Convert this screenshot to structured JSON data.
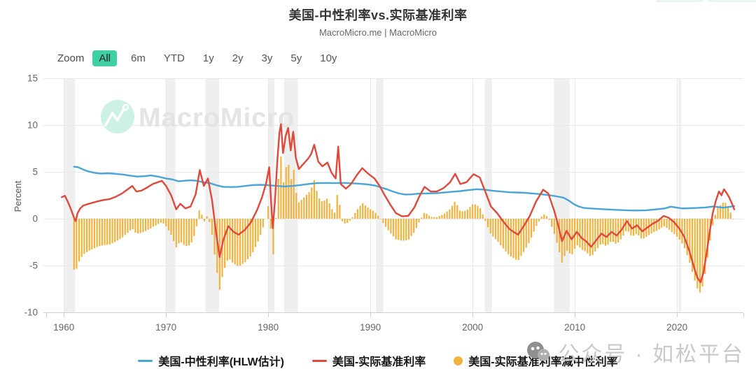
{
  "header": {
    "title": "美国-中性利率vs.实际基准利率",
    "source": "MacroMicro.me | MacroMicro"
  },
  "toolbar": {
    "zoom_label": "Zoom",
    "ranges": [
      "All",
      "6m",
      "YTD",
      "1y",
      "2y",
      "3y",
      "5y",
      "10y"
    ],
    "active_range": "All",
    "active_color": "#3ed0a5"
  },
  "watermark": {
    "brand": "MacroMicro",
    "overlay_text": "公众号 · 如松平台"
  },
  "legend": [
    {
      "label": "美国-中性利率(HLW估计)",
      "marker": "line",
      "color": "#47a5d8"
    },
    {
      "label": "美国-实际基准利率",
      "marker": "line",
      "color": "#e2483a"
    },
    {
      "label": "美国-实际基准利率减中性利率",
      "marker": "circle",
      "color": "#f2b33e"
    }
  ],
  "chart_data": {
    "type": "mixed-line-bar",
    "title": "美国-中性利率vs.实际基准利率",
    "ylabel": "Percent",
    "y_ticks": [
      15,
      10,
      5,
      0,
      -5,
      -10
    ],
    "x_ticks": [
      1960,
      1970,
      1980,
      1990,
      2000,
      2010,
      2020
    ],
    "x_range": [
      1958,
      2026.5
    ],
    "y_range": [
      -10,
      15
    ],
    "grid": true,
    "colors": {
      "grid": "#e8e8e8",
      "band": "#efefef",
      "axis": "#cfcfcf",
      "tick_text": "#666666"
    },
    "recession_bands": [
      [
        1960.0,
        1961.1
      ],
      [
        1969.95,
        1970.9
      ],
      [
        1973.85,
        1975.2
      ],
      [
        1980.0,
        1980.6
      ],
      [
        1981.55,
        1982.9
      ],
      [
        1990.55,
        1991.25
      ],
      [
        2001.2,
        2001.9
      ],
      [
        2007.95,
        2009.5
      ],
      [
        2020.15,
        2020.4
      ]
    ],
    "series": [
      {
        "name": "美国-中性利率(HLW估计)",
        "type": "line",
        "color": "#47a5d8",
        "points": [
          [
            1961.0,
            5.55
          ],
          [
            1961.4,
            5.5
          ],
          [
            1961.9,
            5.25
          ],
          [
            1962.4,
            5.05
          ],
          [
            1963.0,
            4.9
          ],
          [
            1963.6,
            4.82
          ],
          [
            1964.3,
            4.85
          ],
          [
            1965.0,
            4.8
          ],
          [
            1965.8,
            4.72
          ],
          [
            1966.5,
            4.6
          ],
          [
            1967.2,
            4.5
          ],
          [
            1968.0,
            4.55
          ],
          [
            1968.5,
            4.62
          ],
          [
            1969.2,
            4.5
          ],
          [
            1970.0,
            4.3
          ],
          [
            1970.6,
            4.2
          ],
          [
            1971.2,
            4.0
          ],
          [
            1971.8,
            4.05
          ],
          [
            1972.4,
            4.1
          ],
          [
            1973.0,
            4.05
          ],
          [
            1973.6,
            3.9
          ],
          [
            1974.3,
            3.8
          ],
          [
            1975.0,
            3.55
          ],
          [
            1975.6,
            3.4
          ],
          [
            1976.3,
            3.38
          ],
          [
            1977.0,
            3.4
          ],
          [
            1977.8,
            3.5
          ],
          [
            1978.5,
            3.6
          ],
          [
            1979.3,
            3.62
          ],
          [
            1980.0,
            3.58
          ],
          [
            1980.8,
            3.5
          ],
          [
            1981.6,
            3.45
          ],
          [
            1982.4,
            3.5
          ],
          [
            1983.2,
            3.6
          ],
          [
            1984.0,
            3.72
          ],
          [
            1984.8,
            3.8
          ],
          [
            1985.6,
            3.82
          ],
          [
            1986.4,
            3.8
          ],
          [
            1987.2,
            3.82
          ],
          [
            1988.0,
            3.8
          ],
          [
            1988.8,
            3.75
          ],
          [
            1989.6,
            3.68
          ],
          [
            1990.4,
            3.55
          ],
          [
            1991.0,
            3.35
          ],
          [
            1991.6,
            3.15
          ],
          [
            1992.2,
            2.9
          ],
          [
            1992.8,
            2.7
          ],
          [
            1993.4,
            2.58
          ],
          [
            1994.0,
            2.6
          ],
          [
            1994.8,
            2.68
          ],
          [
            1995.6,
            2.7
          ],
          [
            1996.4,
            2.72
          ],
          [
            1997.2,
            2.8
          ],
          [
            1998.0,
            2.88
          ],
          [
            1998.8,
            2.95
          ],
          [
            1999.6,
            3.05
          ],
          [
            2000.4,
            3.15
          ],
          [
            2001.2,
            3.1
          ],
          [
            2002.0,
            2.98
          ],
          [
            2002.8,
            2.9
          ],
          [
            2003.6,
            2.82
          ],
          [
            2004.4,
            2.8
          ],
          [
            2005.2,
            2.75
          ],
          [
            2006.0,
            2.68
          ],
          [
            2006.8,
            2.6
          ],
          [
            2007.6,
            2.5
          ],
          [
            2008.4,
            2.35
          ],
          [
            2008.9,
            2.25
          ],
          [
            2009.4,
            1.95
          ],
          [
            2009.9,
            1.55
          ],
          [
            2010.4,
            1.3
          ],
          [
            2010.9,
            1.15
          ],
          [
            2011.5,
            1.1
          ],
          [
            2012.2,
            1.05
          ],
          [
            2013.0,
            1.0
          ],
          [
            2014.0,
            0.95
          ],
          [
            2015.0,
            0.9
          ],
          [
            2016.0,
            0.87
          ],
          [
            2017.0,
            0.9
          ],
          [
            2018.0,
            1.0
          ],
          [
            2018.8,
            1.1
          ],
          [
            2019.4,
            1.28
          ],
          [
            2019.9,
            1.2
          ],
          [
            2020.5,
            1.1
          ],
          [
            2021.2,
            1.12
          ],
          [
            2022.0,
            1.15
          ],
          [
            2022.8,
            1.2
          ],
          [
            2023.5,
            1.3
          ],
          [
            2024.0,
            1.25
          ],
          [
            2024.5,
            1.18
          ],
          [
            2025.0,
            1.25
          ],
          [
            2025.6,
            1.35
          ]
        ]
      },
      {
        "name": "美国-实际基准利率",
        "type": "line",
        "color": "#e2483a",
        "points": [
          [
            1959.8,
            2.3
          ],
          [
            1960.1,
            2.45
          ],
          [
            1960.4,
            1.8
          ],
          [
            1960.7,
            1.0
          ],
          [
            1961.0,
            0.1
          ],
          [
            1961.15,
            -0.25
          ],
          [
            1961.35,
            0.6
          ],
          [
            1961.6,
            1.1
          ],
          [
            1961.9,
            1.4
          ],
          [
            1962.3,
            1.55
          ],
          [
            1962.8,
            1.7
          ],
          [
            1963.3,
            1.85
          ],
          [
            1963.9,
            2.0
          ],
          [
            1964.5,
            2.1
          ],
          [
            1965.1,
            2.35
          ],
          [
            1965.7,
            2.7
          ],
          [
            1966.2,
            3.1
          ],
          [
            1966.7,
            3.5
          ],
          [
            1967.1,
            2.9
          ],
          [
            1967.6,
            3.0
          ],
          [
            1968.1,
            3.3
          ],
          [
            1968.7,
            3.7
          ],
          [
            1969.2,
            3.9
          ],
          [
            1969.6,
            4.05
          ],
          [
            1970.0,
            3.5
          ],
          [
            1970.5,
            2.5
          ],
          [
            1971.0,
            1.0
          ],
          [
            1971.4,
            1.6
          ],
          [
            1971.9,
            1.1
          ],
          [
            1972.4,
            1.3
          ],
          [
            1972.9,
            2.6
          ],
          [
            1973.3,
            5.2
          ],
          [
            1973.7,
            3.5
          ],
          [
            1974.1,
            4.3
          ],
          [
            1974.5,
            2.0
          ],
          [
            1974.9,
            -1.5
          ],
          [
            1975.25,
            -4.1
          ],
          [
            1975.6,
            -2.3
          ],
          [
            1976.1,
            -0.8
          ],
          [
            1976.6,
            -1.4
          ],
          [
            1977.1,
            -1.7
          ],
          [
            1977.7,
            -1.2
          ],
          [
            1978.3,
            -0.4
          ],
          [
            1978.9,
            0.9
          ],
          [
            1979.4,
            2.3
          ],
          [
            1979.8,
            3.8
          ],
          [
            1980.1,
            5.5
          ],
          [
            1980.3,
            1.5
          ],
          [
            1980.45,
            -1.0
          ],
          [
            1980.65,
            1.8
          ],
          [
            1980.9,
            6.3
          ],
          [
            1981.1,
            9.2
          ],
          [
            1981.25,
            10.1
          ],
          [
            1981.45,
            7.0
          ],
          [
            1981.7,
            8.8
          ],
          [
            1981.95,
            9.7
          ],
          [
            1982.2,
            7.3
          ],
          [
            1982.45,
            9.3
          ],
          [
            1982.7,
            6.5
          ],
          [
            1983.0,
            5.3
          ],
          [
            1983.4,
            5.8
          ],
          [
            1983.9,
            6.4
          ],
          [
            1984.2,
            6.9
          ],
          [
            1984.5,
            7.9
          ],
          [
            1984.9,
            6.1
          ],
          [
            1985.3,
            5.6
          ],
          [
            1985.8,
            6.0
          ],
          [
            1986.2,
            4.9
          ],
          [
            1986.6,
            4.3
          ],
          [
            1986.85,
            7.7
          ],
          [
            1987.1,
            3.7
          ],
          [
            1987.6,
            3.2
          ],
          [
            1988.1,
            3.7
          ],
          [
            1988.7,
            4.7
          ],
          [
            1989.2,
            5.4
          ],
          [
            1989.8,
            4.8
          ],
          [
            1990.4,
            4.3
          ],
          [
            1990.9,
            3.5
          ],
          [
            1991.4,
            2.5
          ],
          [
            1992.0,
            1.4
          ],
          [
            1992.5,
            0.6
          ],
          [
            1993.1,
            0.25
          ],
          [
            1993.7,
            0.3
          ],
          [
            1994.3,
            1.2
          ],
          [
            1994.8,
            2.4
          ],
          [
            1995.3,
            3.4
          ],
          [
            1995.9,
            2.9
          ],
          [
            1996.5,
            2.9
          ],
          [
            1997.2,
            3.3
          ],
          [
            1997.8,
            3.9
          ],
          [
            1998.3,
            4.8
          ],
          [
            1998.8,
            3.7
          ],
          [
            1999.4,
            3.9
          ],
          [
            2000.1,
            4.75
          ],
          [
            2000.7,
            4.4
          ],
          [
            2001.2,
            3.0
          ],
          [
            2001.8,
            1.3
          ],
          [
            2002.4,
            0.6
          ],
          [
            2003.0,
            -0.3
          ],
          [
            2003.6,
            -1.1
          ],
          [
            2004.0,
            -1.4
          ],
          [
            2004.45,
            -1.7
          ],
          [
            2005.0,
            -0.8
          ],
          [
            2005.6,
            0.3
          ],
          [
            2006.2,
            1.8
          ],
          [
            2006.9,
            3.1
          ],
          [
            2007.4,
            2.7
          ],
          [
            2008.0,
            0.8
          ],
          [
            2008.4,
            -0.8
          ],
          [
            2008.75,
            -2.4
          ],
          [
            2009.2,
            -1.3
          ],
          [
            2009.7,
            -2.2
          ],
          [
            2010.2,
            -1.4
          ],
          [
            2010.7,
            -2.1
          ],
          [
            2011.1,
            -2.4
          ],
          [
            2011.6,
            -3.0
          ],
          [
            2012.1,
            -2.3
          ],
          [
            2012.6,
            -1.6
          ],
          [
            2013.1,
            -1.95
          ],
          [
            2013.6,
            -1.4
          ],
          [
            2014.1,
            -1.8
          ],
          [
            2014.6,
            -1.15
          ],
          [
            2015.1,
            -0.25
          ],
          [
            2015.6,
            -1.05
          ],
          [
            2016.1,
            -0.7
          ],
          [
            2016.6,
            -1.35
          ],
          [
            2017.1,
            -0.95
          ],
          [
            2017.6,
            -0.55
          ],
          [
            2018.1,
            -0.25
          ],
          [
            2018.7,
            0.3
          ],
          [
            2019.2,
            0.1
          ],
          [
            2019.7,
            -0.35
          ],
          [
            2020.2,
            -1.0
          ],
          [
            2020.7,
            -1.9
          ],
          [
            2021.2,
            -3.4
          ],
          [
            2021.7,
            -5.3
          ],
          [
            2022.0,
            -6.3
          ],
          [
            2022.3,
            -6.8
          ],
          [
            2022.6,
            -5.7
          ],
          [
            2022.9,
            -3.7
          ],
          [
            2023.2,
            -1.4
          ],
          [
            2023.5,
            0.6
          ],
          [
            2023.8,
            1.9
          ],
          [
            2024.1,
            2.9
          ],
          [
            2024.35,
            2.5
          ],
          [
            2024.6,
            3.15
          ],
          [
            2024.85,
            2.75
          ],
          [
            2025.1,
            2.3
          ],
          [
            2025.35,
            1.7
          ],
          [
            2025.6,
            1.0
          ]
        ]
      },
      {
        "name": "美国-实际基准利率减中性利率",
        "type": "bar",
        "color": "#f2b33e",
        "derived": "实际基准利率 - 中性利率",
        "sample_start": 1961.0,
        "sample_end": 2025.5,
        "sample_step": 0.25
      }
    ]
  }
}
